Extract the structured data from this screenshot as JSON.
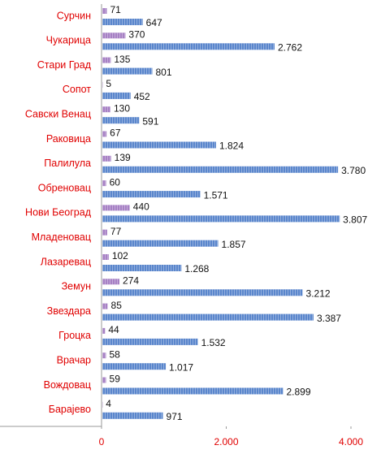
{
  "chart_data": {
    "type": "bar",
    "orientation": "horizontal",
    "categories": [
      "Сурчин",
      "Чукарица",
      "Стари Град",
      "Сопот",
      "Савски Венац",
      "Раковица",
      "Палилула",
      "Обреновац",
      "Нови Београд",
      "Младеновац",
      "Лазаревац",
      "Земун",
      "Звездара",
      "Гроцка",
      "Врачар",
      "Вождовац",
      "Барајево"
    ],
    "series": [
      {
        "color": "#a680c4",
        "values": [
          71,
          370,
          135,
          5,
          130,
          67,
          139,
          60,
          440,
          77,
          102,
          274,
          85,
          44,
          58,
          59,
          4
        ],
        "value_labels": [
          "71",
          "370",
          "135",
          "5",
          "130",
          "67",
          "139",
          "60",
          "440",
          "77",
          "102",
          "274",
          "85",
          "44",
          "58",
          "59",
          "4"
        ]
      },
      {
        "color": "#5a86cc",
        "values": [
          647,
          2762,
          801,
          452,
          591,
          1824,
          3780,
          1571,
          3807,
          1857,
          1268,
          3212,
          3387,
          1532,
          1017,
          2899,
          971
        ],
        "value_labels": [
          "647",
          "2.762",
          "801",
          "452",
          "591",
          "1.824",
          "3.780",
          "1.571",
          "3.807",
          "1.857",
          "1.268",
          "3.212",
          "3.387",
          "1.532",
          "1.017",
          "2.899",
          "971"
        ]
      }
    ],
    "xlim": [
      0,
      4000
    ],
    "xticks": [
      0,
      {
        "value": 2000,
        "label": "2.000"
      },
      {
        "value": 4000,
        "label": "4.000"
      }
    ]
  }
}
